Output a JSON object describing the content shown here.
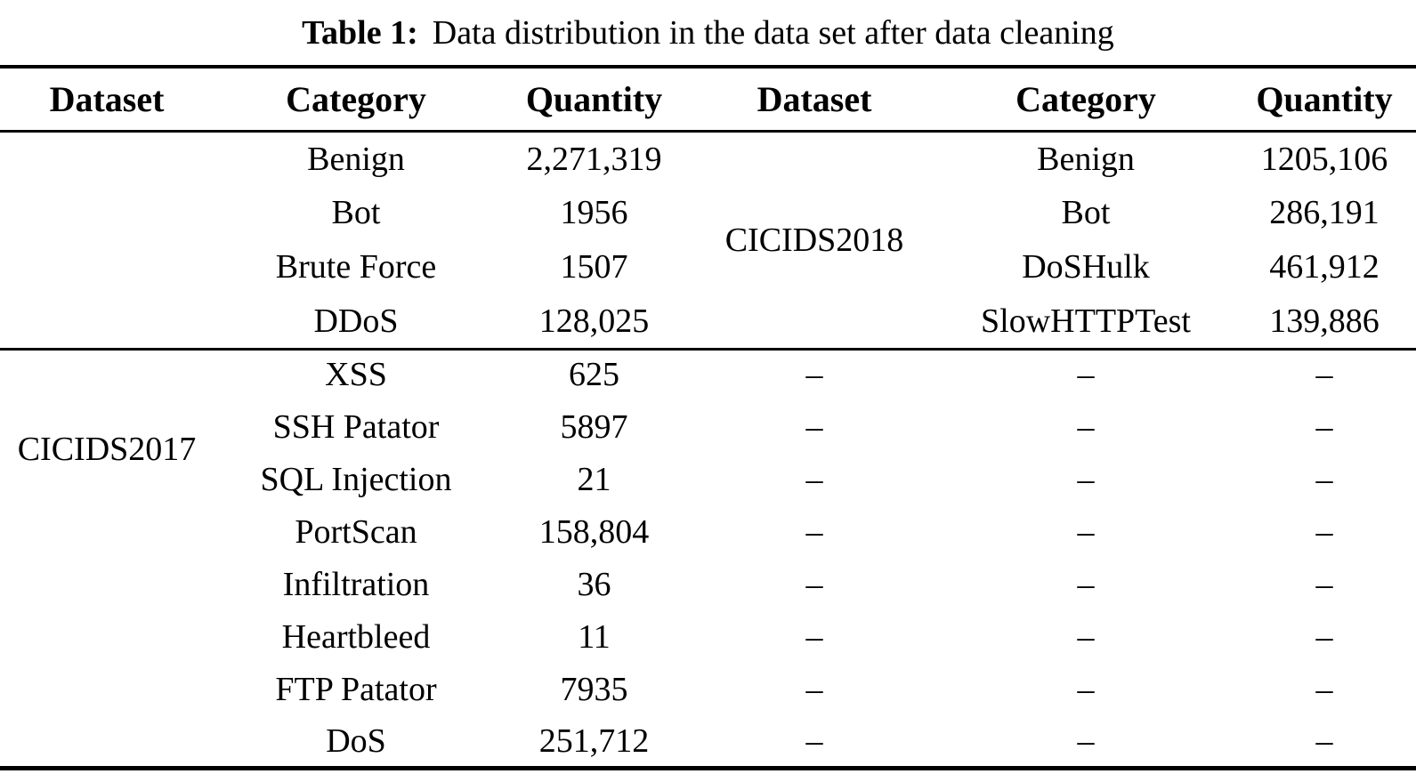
{
  "caption": {
    "label": "Table 1:",
    "text": "Data distribution in the data set after data cleaning"
  },
  "table": {
    "headers": [
      "Dataset",
      "Category",
      "Quantity",
      "Dataset",
      "Category",
      "Quantity"
    ],
    "datasets": {
      "left": "CICIDS2017",
      "left_rowspan": 12,
      "right": "CICIDS2018",
      "right_rowspan": 4
    },
    "empty_marker": "–",
    "rows": [
      {
        "category": "Benign",
        "quantity": "2,271,319",
        "category2": "Benign",
        "quantity2": "1205,106"
      },
      {
        "category": "Bot",
        "quantity": "1956",
        "category2": "Bot",
        "quantity2": "286,191"
      },
      {
        "category": "Brute Force",
        "quantity": "1507",
        "category2": "DoSHulk",
        "quantity2": "461,912"
      },
      {
        "category": "DDoS",
        "quantity": "128,025",
        "category2": "SlowHTTPTest",
        "quantity2": "139,886"
      },
      {
        "category": "XSS",
        "quantity": "625",
        "dataset2": "–",
        "category2": "–",
        "quantity2": "–"
      },
      {
        "category": "SSH Patator",
        "quantity": "5897",
        "dataset2": "–",
        "category2": "–",
        "quantity2": "–"
      },
      {
        "category": "SQL Injection",
        "quantity": "21",
        "dataset2": "–",
        "category2": "–",
        "quantity2": "–"
      },
      {
        "category": "PortScan",
        "quantity": "158,804",
        "dataset2": "–",
        "category2": "–",
        "quantity2": "–"
      },
      {
        "category": "Infiltration",
        "quantity": "36",
        "dataset2": "–",
        "category2": "–",
        "quantity2": "–"
      },
      {
        "category": "Heartbleed",
        "quantity": "11",
        "dataset2": "–",
        "category2": "–",
        "quantity2": "–"
      },
      {
        "category": "FTP Patator",
        "quantity": "7935",
        "dataset2": "–",
        "category2": "–",
        "quantity2": "–"
      },
      {
        "category": "DoS",
        "quantity": "251,712",
        "dataset2": "–",
        "category2": "–",
        "quantity2": "–"
      }
    ]
  },
  "colors": {
    "text": "#000000",
    "background": "#ffffff",
    "rule": "#000000"
  }
}
